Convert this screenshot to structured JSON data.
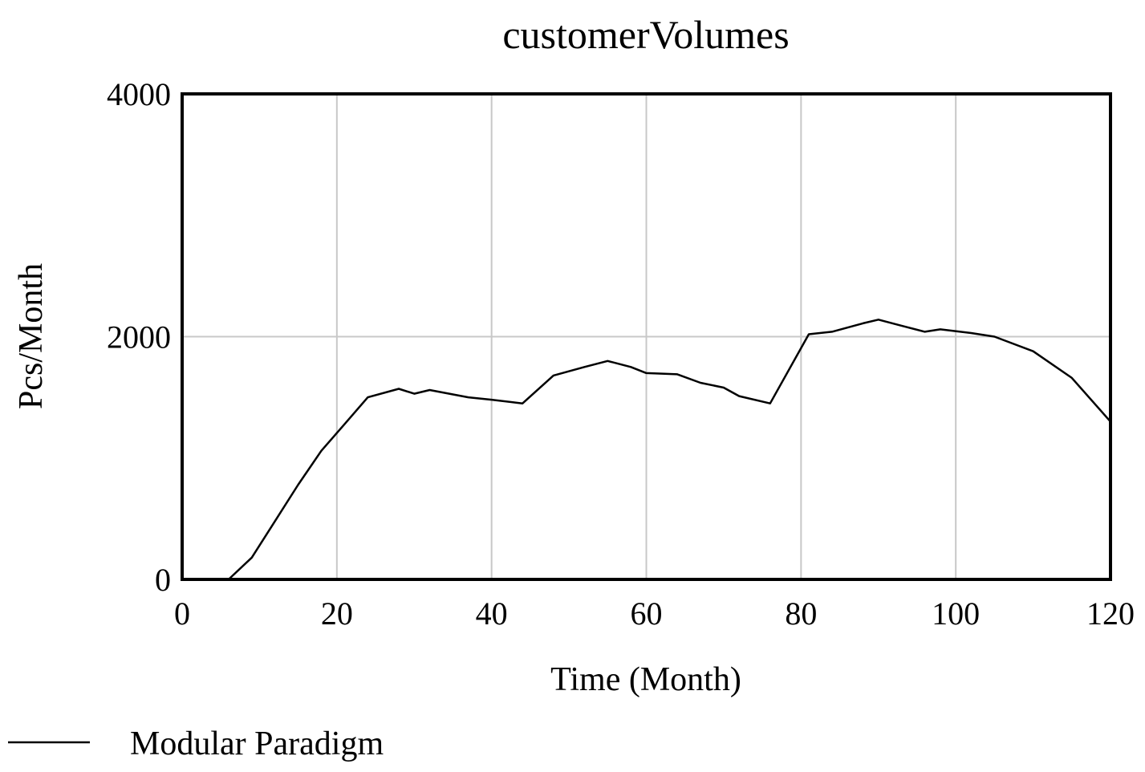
{
  "chart_data": {
    "type": "line",
    "title": "customerVolumes",
    "xlabel": "Time (Month)",
    "ylabel": "Pcs/Month",
    "xlim": [
      0,
      120
    ],
    "ylim": [
      0,
      4000
    ],
    "x_ticks": [
      0,
      20,
      40,
      60,
      80,
      100,
      120
    ],
    "y_ticks": [
      0,
      2000,
      4000
    ],
    "x_tick_labels": [
      "0",
      "20",
      "40",
      "60",
      "80",
      "100",
      "120"
    ],
    "y_tick_labels": [
      "0",
      "2000",
      "4000"
    ],
    "grid": true,
    "legend_position": "bottom-left",
    "colors": {
      "series": "#000000",
      "grid": "#c8c8c8",
      "frame": "#000000"
    },
    "series": [
      {
        "name": "Modular Paradigm",
        "x": [
          0,
          2,
          4,
          6,
          9,
          12,
          15,
          18,
          21,
          24,
          28,
          30,
          32,
          37,
          40,
          44,
          48,
          52,
          55,
          58,
          60,
          64,
          67,
          70,
          72,
          76,
          81,
          84,
          88,
          90,
          93,
          96,
          98,
          102,
          105,
          110,
          115,
          120
        ],
        "y": [
          0,
          0,
          0,
          0,
          180,
          480,
          780,
          1060,
          1280,
          1500,
          1570,
          1530,
          1560,
          1500,
          1480,
          1450,
          1680,
          1750,
          1800,
          1750,
          1700,
          1690,
          1620,
          1580,
          1510,
          1450,
          2020,
          2040,
          2110,
          2140,
          2090,
          2040,
          2060,
          2030,
          2000,
          1880,
          1660,
          1300
        ]
      }
    ]
  }
}
